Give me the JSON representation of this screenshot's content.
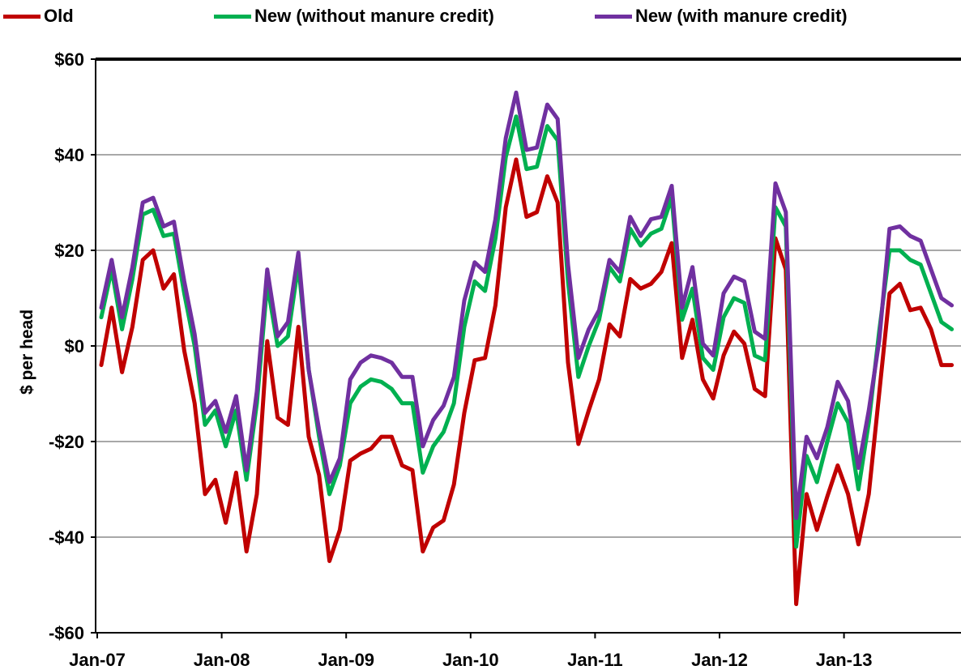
{
  "chart_data": {
    "type": "line",
    "title": "",
    "xlabel": "",
    "ylabel": "$ per head",
    "ylim": [
      -60,
      60
    ],
    "y_ticks": [
      -60,
      -40,
      -20,
      0,
      20,
      40,
      60
    ],
    "y_tick_labels": [
      "-$60",
      "-$40",
      "-$20",
      "$0",
      "$20",
      "$40",
      "$60"
    ],
    "x_ticks": [
      "Jan-07",
      "Jan-08",
      "Jan-09",
      "Jan-10",
      "Jan-11",
      "Jan-12",
      "Jan-13"
    ],
    "x_start": "Jan-07",
    "x_end": "Dec-13",
    "grid": "horizontal",
    "legend_position": "top",
    "series": [
      {
        "name": "Old",
        "color": "#c00000",
        "values": [
          -4,
          8,
          -5.5,
          4,
          18,
          20,
          12,
          15,
          -1,
          -12,
          -31,
          -28,
          -37,
          -26.5,
          -43,
          -31,
          1,
          -15,
          -16.5,
          4,
          -19,
          -27,
          -45,
          -38.5,
          -24,
          -22.5,
          -21.5,
          -19,
          -19,
          -25,
          -26,
          -43,
          -38,
          -36.5,
          -29,
          -14,
          -3,
          -2.5,
          8.5,
          29,
          39,
          27,
          28,
          35.5,
          30,
          -3.5,
          -20.5,
          -13.5,
          -7,
          4.5,
          2,
          14,
          12,
          13,
          15.5,
          21.5,
          -2.5,
          5.5,
          -7,
          -11,
          -2,
          3,
          0.5,
          -9,
          -10.5,
          22.5,
          16,
          -54,
          -31,
          -38.5,
          -31.5,
          -25,
          -31,
          -41.5,
          -31,
          -10,
          11,
          13,
          7.5,
          8,
          3.5,
          -4,
          -4
        ]
      },
      {
        "name": "New (without manure credit)",
        "color": "#00b050",
        "values": [
          6,
          16,
          3.5,
          14,
          27.5,
          28.5,
          23,
          23.5,
          11,
          0,
          -16.5,
          -13.5,
          -21,
          -13.5,
          -28,
          -12,
          13,
          0,
          2,
          17,
          -5,
          -19,
          -31,
          -25,
          -12,
          -8.5,
          -7,
          -7.5,
          -9,
          -12,
          -12,
          -26.5,
          -21,
          -18,
          -12,
          4,
          13.5,
          11.5,
          22.5,
          39.5,
          48,
          37,
          37.5,
          46,
          43,
          13.5,
          -6.5,
          0,
          5.5,
          16.5,
          13.5,
          24.5,
          21,
          23.5,
          24.5,
          31,
          5.5,
          12,
          -2.5,
          -5,
          6,
          10,
          9,
          -2,
          -3,
          29,
          25,
          -42,
          -23,
          -28.5,
          -20,
          -12,
          -16,
          -30,
          -16,
          3,
          20,
          20,
          18,
          17,
          11,
          5,
          3.5
        ]
      },
      {
        "name": "New (with manure credit)",
        "color": "#7030a0",
        "values": [
          8,
          18,
          6,
          16.5,
          30,
          31,
          25,
          26,
          13.5,
          2.5,
          -14,
          -11.5,
          -18,
          -10.5,
          -26,
          -9.5,
          16,
          2,
          5,
          19.5,
          -5,
          -17.5,
          -28.5,
          -23.5,
          -7,
          -3.5,
          -2,
          -2.5,
          -3.5,
          -6.5,
          -6.5,
          -21,
          -15.5,
          -12.5,
          -6.5,
          9.5,
          17.5,
          15.5,
          26.5,
          43.5,
          53,
          41,
          41.5,
          50.5,
          47.5,
          17,
          -2.5,
          3.5,
          7.5,
          18,
          15.5,
          27,
          23,
          26.5,
          27,
          33.5,
          8,
          16.5,
          0.5,
          -2,
          11,
          14.5,
          13.5,
          3,
          1.5,
          34,
          28,
          -36,
          -19,
          -23.5,
          -17,
          -7.5,
          -11.5,
          -25.5,
          -13.5,
          1,
          24.5,
          25,
          23,
          22,
          16,
          10,
          8.5
        ]
      }
    ]
  }
}
